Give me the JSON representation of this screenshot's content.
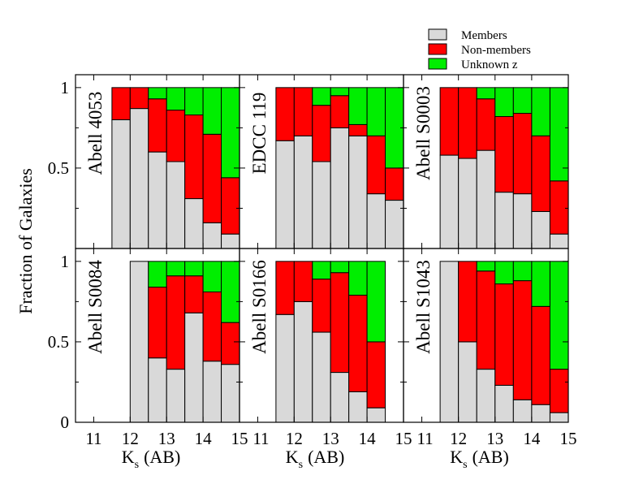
{
  "chart_data": {
    "type": "bar",
    "stacked": true,
    "ylabel": "Fraction of Galaxies",
    "xlabel_main": "K",
    "xlabel_sub": "s",
    "xlabel_unit": "(AB)",
    "xlim": [
      10.5,
      15.0
    ],
    "ylim": [
      0.0,
      1.08
    ],
    "x_tick_values": [
      11,
      12,
      13,
      14,
      15
    ],
    "x_tick_labels": [
      "11",
      "12",
      "13",
      "14",
      "15"
    ],
    "y_tick_values": [
      0,
      0.5,
      1
    ],
    "y_tick_labels": [
      "0",
      "0.5",
      "1"
    ],
    "y_minor_tick_values": [
      0.25,
      0.75
    ],
    "bin_width": 0.5,
    "series": [
      {
        "name": "Members",
        "color": "#d9d9d9"
      },
      {
        "name": "Non-members",
        "color": "#ff0000"
      },
      {
        "name": "Unknown z",
        "color": "#00ee00"
      }
    ],
    "legend_position": "top-right",
    "panels": [
      {
        "label": "Abell 4053",
        "bins": [
          {
            "x0": 11.5,
            "members": 0.8,
            "nonmembers": 0.2,
            "unknown": 0.0
          },
          {
            "x0": 12.0,
            "members": 0.87,
            "nonmembers": 0.13,
            "unknown": 0.0
          },
          {
            "x0": 12.5,
            "members": 0.6,
            "nonmembers": 0.33,
            "unknown": 0.07
          },
          {
            "x0": 13.0,
            "members": 0.54,
            "nonmembers": 0.32,
            "unknown": 0.14
          },
          {
            "x0": 13.5,
            "members": 0.31,
            "nonmembers": 0.52,
            "unknown": 0.17
          },
          {
            "x0": 14.0,
            "members": 0.16,
            "nonmembers": 0.55,
            "unknown": 0.29
          },
          {
            "x0": 14.5,
            "members": 0.09,
            "nonmembers": 0.35,
            "unknown": 0.56
          }
        ]
      },
      {
        "label": "EDCC 119",
        "bins": [
          {
            "x0": 11.5,
            "members": 0.67,
            "nonmembers": 0.33,
            "unknown": 0.0
          },
          {
            "x0": 12.0,
            "members": 0.7,
            "nonmembers": 0.3,
            "unknown": 0.0
          },
          {
            "x0": 12.5,
            "members": 0.54,
            "nonmembers": 0.35,
            "unknown": 0.11
          },
          {
            "x0": 13.0,
            "members": 0.75,
            "nonmembers": 0.2,
            "unknown": 0.05
          },
          {
            "x0": 13.5,
            "members": 0.7,
            "nonmembers": 0.07,
            "unknown": 0.23
          },
          {
            "x0": 14.0,
            "members": 0.34,
            "nonmembers": 0.36,
            "unknown": 0.3
          },
          {
            "x0": 14.5,
            "members": 0.3,
            "nonmembers": 0.2,
            "unknown": 0.5
          }
        ]
      },
      {
        "label": "Abell S0003",
        "bins": [
          {
            "x0": 11.5,
            "members": 0.58,
            "nonmembers": 0.42,
            "unknown": 0.0
          },
          {
            "x0": 12.0,
            "members": 0.56,
            "nonmembers": 0.44,
            "unknown": 0.0
          },
          {
            "x0": 12.5,
            "members": 0.61,
            "nonmembers": 0.32,
            "unknown": 0.07
          },
          {
            "x0": 13.0,
            "members": 0.35,
            "nonmembers": 0.47,
            "unknown": 0.18
          },
          {
            "x0": 13.5,
            "members": 0.34,
            "nonmembers": 0.5,
            "unknown": 0.16
          },
          {
            "x0": 14.0,
            "members": 0.23,
            "nonmembers": 0.47,
            "unknown": 0.3
          },
          {
            "x0": 14.5,
            "members": 0.09,
            "nonmembers": 0.33,
            "unknown": 0.58
          }
        ]
      },
      {
        "label": "Abell S0084",
        "bins": [
          {
            "x0": 12.0,
            "members": 1.0,
            "nonmembers": 0.0,
            "unknown": 0.0
          },
          {
            "x0": 12.5,
            "members": 0.4,
            "nonmembers": 0.44,
            "unknown": 0.16
          },
          {
            "x0": 13.0,
            "members": 0.33,
            "nonmembers": 0.58,
            "unknown": 0.09
          },
          {
            "x0": 13.5,
            "members": 0.68,
            "nonmembers": 0.23,
            "unknown": 0.09
          },
          {
            "x0": 14.0,
            "members": 0.38,
            "nonmembers": 0.43,
            "unknown": 0.19
          },
          {
            "x0": 14.5,
            "members": 0.36,
            "nonmembers": 0.26,
            "unknown": 0.38
          }
        ]
      },
      {
        "label": "Abell S0166",
        "bins": [
          {
            "x0": 11.5,
            "members": 0.67,
            "nonmembers": 0.33,
            "unknown": 0.0
          },
          {
            "x0": 12.0,
            "members": 0.75,
            "nonmembers": 0.25,
            "unknown": 0.0
          },
          {
            "x0": 12.5,
            "members": 0.56,
            "nonmembers": 0.33,
            "unknown": 0.11
          },
          {
            "x0": 13.0,
            "members": 0.31,
            "nonmembers": 0.62,
            "unknown": 0.07
          },
          {
            "x0": 13.5,
            "members": 0.19,
            "nonmembers": 0.6,
            "unknown": 0.21
          },
          {
            "x0": 14.0,
            "members": 0.09,
            "nonmembers": 0.41,
            "unknown": 0.5
          }
        ]
      },
      {
        "label": "Abell S1043",
        "bins": [
          {
            "x0": 11.5,
            "members": 1.0,
            "nonmembers": 0.0,
            "unknown": 0.0
          },
          {
            "x0": 12.0,
            "members": 0.5,
            "nonmembers": 0.5,
            "unknown": 0.0
          },
          {
            "x0": 12.5,
            "members": 0.33,
            "nonmembers": 0.61,
            "unknown": 0.06
          },
          {
            "x0": 13.0,
            "members": 0.23,
            "nonmembers": 0.63,
            "unknown": 0.14
          },
          {
            "x0": 13.5,
            "members": 0.14,
            "nonmembers": 0.74,
            "unknown": 0.12
          },
          {
            "x0": 14.0,
            "members": 0.11,
            "nonmembers": 0.61,
            "unknown": 0.28
          },
          {
            "x0": 14.5,
            "members": 0.06,
            "nonmembers": 0.27,
            "unknown": 0.67
          }
        ]
      }
    ]
  }
}
